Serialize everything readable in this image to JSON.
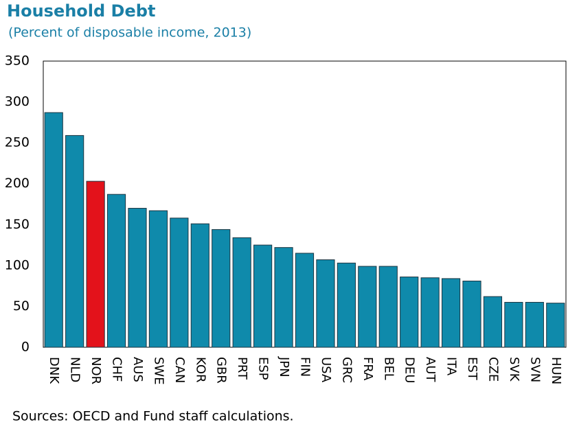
{
  "chart_data": {
    "type": "bar",
    "title": "Household Debt",
    "subtitle": "(Percent of disposable income, 2013)",
    "source": "Sources: OECD and Fund staff calculations.",
    "categories": [
      "DNK",
      "NLD",
      "NOR",
      "CHF",
      "AUS",
      "SWE",
      "CAN",
      "KOR",
      "GBR",
      "PRT",
      "ESP",
      "JPN",
      "FIN",
      "USA",
      "GRC",
      "FRA",
      "BEL",
      "DEU",
      "AUT",
      "ITA",
      "EST",
      "CZE",
      "SVK",
      "SVN",
      "HUN"
    ],
    "values": [
      287,
      259,
      203,
      187,
      170,
      167,
      158,
      151,
      144,
      134,
      125,
      122,
      115,
      107,
      103,
      99,
      99,
      86,
      85,
      84,
      81,
      62,
      55,
      55,
      54
    ],
    "colors": [
      "#0f8aab",
      "#0f8aab",
      "#e3121b",
      "#0f8aab",
      "#0f8aab",
      "#0f8aab",
      "#0f8aab",
      "#0f8aab",
      "#0f8aab",
      "#0f8aab",
      "#0f8aab",
      "#0f8aab",
      "#0f8aab",
      "#0f8aab",
      "#0f8aab",
      "#0f8aab",
      "#0f8aab",
      "#0f8aab",
      "#0f8aab",
      "#0f8aab",
      "#0f8aab",
      "#0f8aab",
      "#0f8aab",
      "#0f8aab",
      "#0f8aab"
    ],
    "ylim": [
      0,
      350
    ],
    "yticks": [
      0,
      50,
      100,
      150,
      200,
      250,
      300,
      350
    ],
    "grid": false
  }
}
